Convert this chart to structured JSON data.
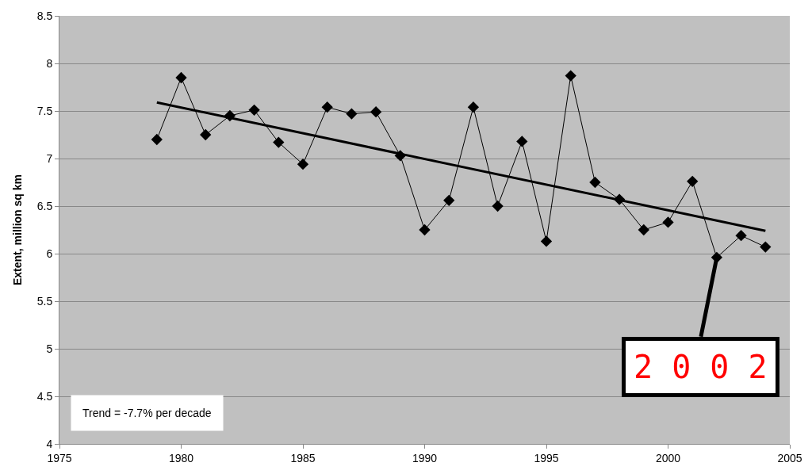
{
  "chart_data": {
    "type": "line",
    "ylabel": "Extent, million sq km",
    "x": [
      1979,
      1980,
      1981,
      1982,
      1983,
      1984,
      1985,
      1986,
      1987,
      1988,
      1989,
      1990,
      1991,
      1992,
      1993,
      1994,
      1995,
      1996,
      1997,
      1998,
      1999,
      2000,
      2001,
      2002,
      2003,
      2004
    ],
    "series": [
      {
        "color": "#000000",
        "marker": "diamond",
        "values": [
          7.2,
          7.85,
          7.25,
          7.45,
          7.51,
          7.17,
          6.94,
          7.54,
          7.47,
          7.49,
          7.03,
          6.25,
          6.56,
          7.54,
          6.5,
          7.18,
          6.13,
          7.87,
          6.75,
          6.57,
          6.25,
          6.33,
          6.76,
          5.96,
          6.19,
          6.07
        ]
      },
      {
        "type": "line",
        "color": "#000000",
        "marker": "none",
        "x": [
          1979,
          2004
        ],
        "values": [
          7.59,
          6.24
        ]
      }
    ],
    "xlim": [
      1975,
      2005
    ],
    "xticks": [
      1975,
      1980,
      1985,
      1990,
      1995,
      2000,
      2005
    ],
    "ylim": [
      4,
      8.5
    ],
    "yticks": [
      4,
      4.5,
      5,
      5.5,
      6,
      6.5,
      7,
      7.5,
      8,
      8.5
    ],
    "grid": "y",
    "annotations": [
      "Trend = -7.7% per decade",
      {
        "text": "2 0 0 2",
        "x": 2002,
        "y": 5.96
      }
    ]
  }
}
